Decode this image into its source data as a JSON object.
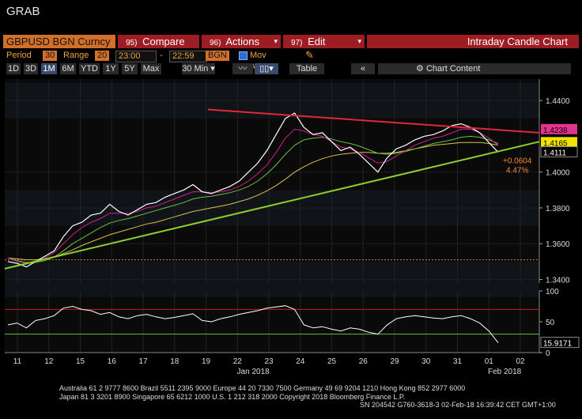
{
  "window": {
    "title": "GRAB"
  },
  "commandbar": {
    "ticker": "GBPUSD BGN Curncy",
    "compare": {
      "num": "95)",
      "label": "Compare"
    },
    "actions": {
      "num": "96)",
      "label": "Actions"
    },
    "edit": {
      "num": "97)",
      "label": "Edit"
    },
    "chart_title": "Intraday Candle Chart"
  },
  "params": {
    "period_label": "Period",
    "period_value": "30",
    "range_label": "Range",
    "range_value": "20",
    "start_time": "23:00",
    "dash": "-",
    "end_time": "22:59",
    "source": "BGN",
    "mov_avg_label": "Mov Avg"
  },
  "toolbar": {
    "ranges": [
      "1D",
      "3D",
      "1M",
      "6M",
      "YTD",
      "1Y",
      "5Y",
      "Max"
    ],
    "selected_range": "1M",
    "interval": "30 Min",
    "table_label": "Table",
    "chart_content_label": "Chart Content"
  },
  "chart_data": {
    "type": "line",
    "main_panel": {
      "ylim": [
        1.338,
        1.452
      ],
      "y_ticks": [
        "1.4400",
        "1.4000",
        "1.3800",
        "1.3600",
        "1.3400"
      ],
      "x_ticks": [
        "11",
        "12",
        "15",
        "16",
        "17",
        "18",
        "19",
        "22",
        "23",
        "24",
        "25",
        "26",
        "29",
        "30",
        "31",
        "01",
        "02"
      ],
      "x_month_labels": [
        "Jan 2018",
        "Feb 2018"
      ],
      "price_series": [
        1.35,
        1.349,
        1.347,
        1.35,
        1.353,
        1.356,
        1.364,
        1.37,
        1.372,
        1.376,
        1.377,
        1.382,
        1.378,
        1.376,
        1.379,
        1.382,
        1.383,
        1.386,
        1.388,
        1.39,
        1.393,
        1.389,
        1.388,
        1.39,
        1.392,
        1.395,
        1.4,
        1.405,
        1.412,
        1.421,
        1.43,
        1.433,
        1.425,
        1.421,
        1.422,
        1.417,
        1.412,
        1.414,
        1.41,
        1.405,
        1.4,
        1.408,
        1.413,
        1.415,
        1.418,
        1.42,
        1.421,
        1.423,
        1.426,
        1.427,
        1.425,
        1.422,
        1.4165,
        1.4111
      ],
      "ma_fast": [
        1.352,
        1.35,
        1.349,
        1.35,
        1.352,
        1.355,
        1.36,
        1.365,
        1.369,
        1.372,
        1.374,
        1.377,
        1.377,
        1.377,
        1.378,
        1.38,
        1.381,
        1.383,
        1.385,
        1.387,
        1.389,
        1.389,
        1.3885,
        1.389,
        1.39,
        1.392,
        1.395,
        1.399,
        1.404,
        1.411,
        1.419,
        1.424,
        1.423,
        1.421,
        1.42,
        1.417,
        1.414,
        1.413,
        1.411,
        1.408,
        1.405,
        1.406,
        1.409,
        1.412,
        1.415,
        1.417,
        1.419,
        1.42,
        1.422,
        1.424,
        1.424,
        1.422,
        1.419,
        1.415
      ],
      "ma_mid": [
        1.352,
        1.3505,
        1.3495,
        1.3495,
        1.3505,
        1.3525,
        1.356,
        1.36,
        1.363,
        1.366,
        1.369,
        1.3715,
        1.373,
        1.374,
        1.3755,
        1.377,
        1.3785,
        1.38,
        1.3815,
        1.383,
        1.385,
        1.386,
        1.3865,
        1.3875,
        1.3885,
        1.39,
        1.392,
        1.395,
        1.399,
        1.404,
        1.41,
        1.415,
        1.418,
        1.419,
        1.4195,
        1.4185,
        1.417,
        1.416,
        1.4145,
        1.4125,
        1.4105,
        1.41,
        1.4105,
        1.4115,
        1.413,
        1.4145,
        1.416,
        1.417,
        1.418,
        1.4195,
        1.42,
        1.4195,
        1.418,
        1.416
      ],
      "ma_slow": [
        1.352,
        1.3515,
        1.351,
        1.351,
        1.3515,
        1.3525,
        1.3545,
        1.3565,
        1.359,
        1.361,
        1.363,
        1.365,
        1.3665,
        1.368,
        1.3695,
        1.371,
        1.372,
        1.3735,
        1.375,
        1.3765,
        1.378,
        1.379,
        1.38,
        1.381,
        1.382,
        1.3835,
        1.385,
        1.387,
        1.3895,
        1.3925,
        1.396,
        1.4,
        1.403,
        1.4055,
        1.4075,
        1.409,
        1.41,
        1.4105,
        1.411,
        1.411,
        1.4105,
        1.4105,
        1.411,
        1.412,
        1.413,
        1.414,
        1.415,
        1.4155,
        1.416,
        1.4165,
        1.4165,
        1.4165,
        1.416,
        1.415
      ],
      "resistance_line": {
        "from": [
          0.38,
          1.435
        ],
        "to": [
          1.0,
          1.422
        ]
      },
      "support_line": {
        "from": [
          0.0,
          1.346
        ],
        "to": [
          1.0,
          1.417
        ]
      },
      "dotted_level": 1.351,
      "price_labels": [
        {
          "text": "1.4238",
          "color": "#e2338f",
          "value": 1.4238
        },
        {
          "text": "1.4165",
          "color": "#f2e200",
          "value": 1.4165
        },
        {
          "text": "1.4111",
          "color": "#ffffff",
          "value": 1.4111
        }
      ],
      "change_annotation": {
        "abs": "+0.0604",
        "pct": "4.47%"
      }
    },
    "rsi_panel": {
      "ylim": [
        0,
        100
      ],
      "y_ticks": [
        "100",
        "50",
        "0"
      ],
      "upper_level": 70,
      "lower_level": 30,
      "current_label": "15.9171",
      "rsi_series": [
        45,
        48,
        40,
        52,
        55,
        60,
        72,
        75,
        70,
        68,
        62,
        65,
        58,
        55,
        60,
        62,
        58,
        55,
        57,
        60,
        63,
        52,
        50,
        55,
        58,
        62,
        65,
        68,
        72,
        74,
        76,
        70,
        45,
        40,
        42,
        38,
        35,
        40,
        38,
        33,
        30,
        45,
        55,
        58,
        60,
        58,
        56,
        55,
        58,
        60,
        55,
        48,
        35,
        15.9
      ]
    },
    "colors": {
      "price": "#ffffff",
      "ma_fast": "#d0208a",
      "ma_mid": "#6dbf3c",
      "ma_slow": "#d9c24a",
      "resistance": "#e0283a",
      "support": "#8ccf2e"
    }
  },
  "footer": {
    "line1": "Australia 61 2 9777 8600 Brazil 5511 2395 9000 Europe 44 20 7330 7500 Germany 49 69 9204 1210 Hong Kong 852 2977 6000",
    "line2": "Japan 81 3 3201 8900          Singapore 65 6212 1000          U.S. 1 212 318 2000                Copyright 2018 Bloomberg Finance L.P.",
    "line3": "SN 204542 G760-3618-3 02-Feb-18 16:39:42 CET  GMT+1:00"
  }
}
